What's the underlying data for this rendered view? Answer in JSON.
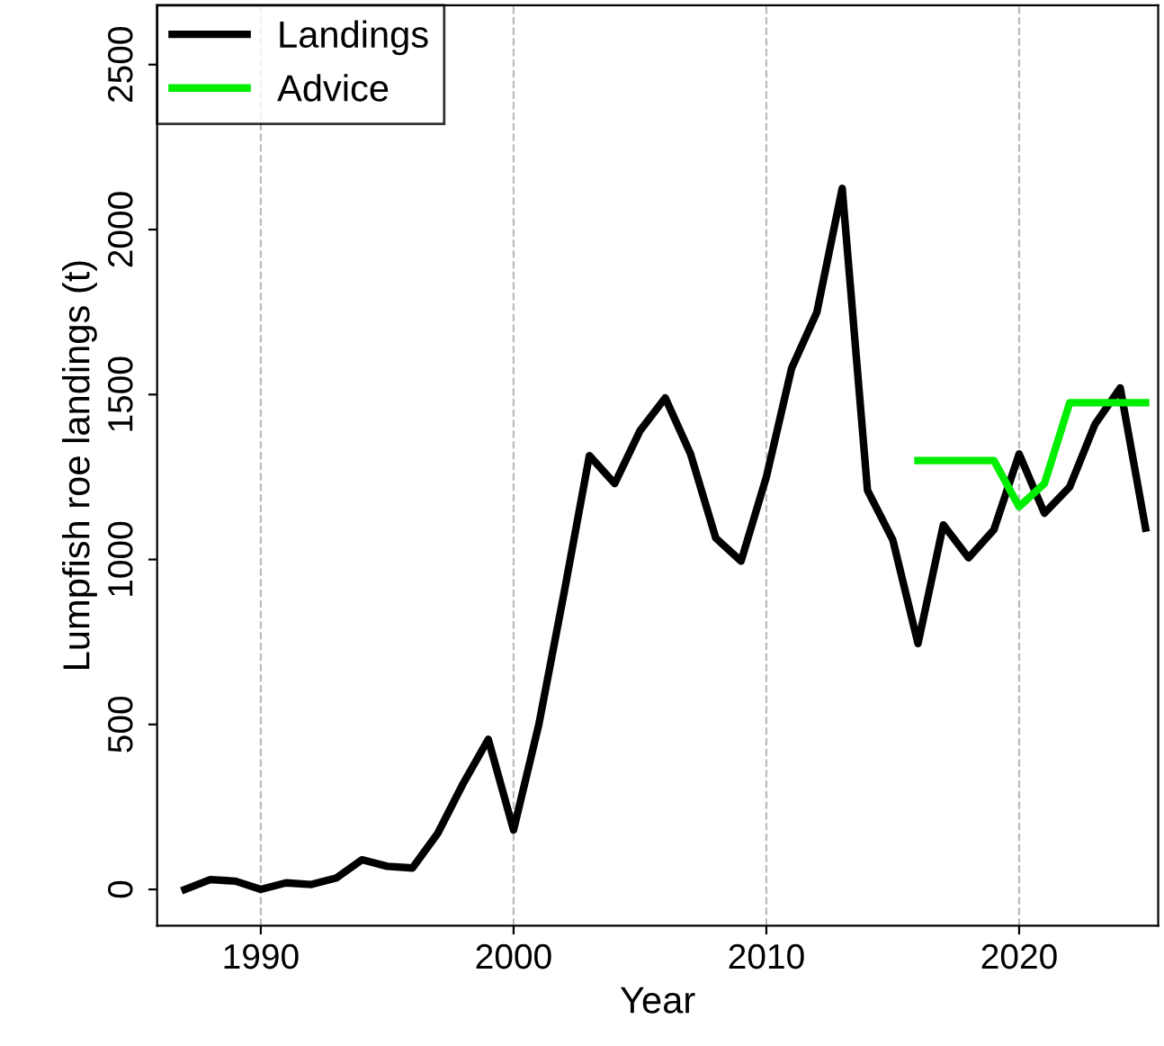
{
  "chart_data": {
    "type": "line",
    "xlabel": "Year",
    "ylabel": "Lumpfish roe landings (t)",
    "x": [
      1987,
      1988,
      1989,
      1990,
      1991,
      1992,
      1993,
      1994,
      1995,
      1996,
      1997,
      1998,
      1999,
      2000,
      2001,
      2002,
      2003,
      2004,
      2005,
      2006,
      2007,
      2008,
      2009,
      2010,
      2011,
      2012,
      2013,
      2014,
      2015,
      2016,
      2017,
      2018,
      2019,
      2020,
      2021,
      2022,
      2023,
      2024,
      2025
    ],
    "series": [
      {
        "name": "Landings",
        "color": "#000000",
        "values": [
          0,
          30,
          25,
          0,
          20,
          15,
          35,
          90,
          70,
          65,
          170,
          320,
          455,
          180,
          500,
          900,
          1315,
          1230,
          1390,
          1490,
          1320,
          1065,
          995,
          1250,
          1580,
          1750,
          2125,
          1210,
          1060,
          745,
          1105,
          1005,
          1090,
          1320,
          1140,
          1220,
          1410,
          1520,
          1095
        ]
      },
      {
        "name": "Advice",
        "color": "#00ee00",
        "x": [
          2016,
          2017,
          2018,
          2019,
          2020,
          2021,
          2022,
          2023,
          2024,
          2025
        ],
        "values": [
          1300,
          1300,
          1300,
          1300,
          1160,
          1230,
          1475,
          1475,
          1475,
          1475
        ]
      }
    ],
    "xlim": [
      1985.9,
      2025.5
    ],
    "ylim": [
      -110,
      2680
    ],
    "xticks": [
      1990,
      2000,
      2010,
      2020
    ],
    "yticks": [
      0,
      500,
      1000,
      1500,
      2000,
      2500
    ],
    "grid": "x",
    "legend": "top left",
    "line_style": "solid",
    "marker": "none"
  }
}
